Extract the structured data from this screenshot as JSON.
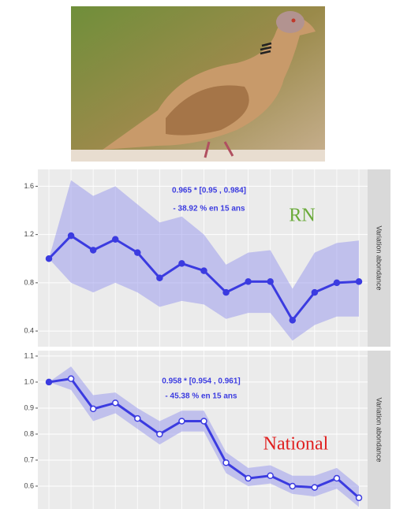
{
  "chart_data": [
    {
      "type": "line",
      "color": "#3b3be0",
      "band_color": "#9d9dec",
      "grid": true,
      "ylim": [
        0.27,
        1.74
      ],
      "yticks": [
        0.4,
        0.8,
        1.2,
        1.6
      ],
      "values": [
        1.0,
        1.19,
        1.07,
        1.16,
        1.05,
        0.84,
        0.96,
        0.9,
        0.72,
        0.81,
        0.81,
        0.49,
        0.72,
        0.8,
        0.81
      ],
      "upper": [
        1.0,
        1.65,
        1.52,
        1.6,
        1.45,
        1.3,
        1.35,
        1.2,
        0.95,
        1.05,
        1.07,
        0.75,
        1.05,
        1.13,
        1.15
      ],
      "lower": [
        1.0,
        0.8,
        0.72,
        0.8,
        0.72,
        0.6,
        0.65,
        0.62,
        0.5,
        0.55,
        0.55,
        0.32,
        0.45,
        0.52,
        0.52
      ],
      "annotations": [
        "0.965 *  [0.95 , 0.984]",
        "- 38.92 % en 15 ans"
      ],
      "label": "RN",
      "label_color": "#6aaa3a",
      "strip": "Variation abondance"
    },
    {
      "type": "line",
      "color": "#3b3be0",
      "band_color": "#9d9dec",
      "grid": true,
      "ylim": [
        0.512,
        1.121
      ],
      "yticks": [
        1.1,
        {
          "value": 1,
          "label": "1.0"
        },
        0.9,
        0.8,
        0.7,
        0.6
      ],
      "values": [
        1.0,
        1.013,
        0.897,
        0.92,
        0.86,
        0.8,
        0.85,
        0.85,
        0.69,
        0.63,
        0.64,
        0.6,
        0.595,
        0.63,
        0.555
      ],
      "upper": [
        1.0,
        1.06,
        0.95,
        0.96,
        0.9,
        0.85,
        0.89,
        0.89,
        0.73,
        0.67,
        0.68,
        0.64,
        0.64,
        0.67,
        0.6
      ],
      "lower": [
        1.0,
        0.97,
        0.85,
        0.88,
        0.82,
        0.76,
        0.81,
        0.81,
        0.65,
        0.6,
        0.61,
        0.57,
        0.56,
        0.59,
        0.52
      ],
      "annotations": [
        "0.958 *  [0.954 , 0.961]",
        "- 45.38 % en 15 ans"
      ],
      "label": "National",
      "label_color": "#e02020",
      "strip": "Variation abondance"
    }
  ]
}
